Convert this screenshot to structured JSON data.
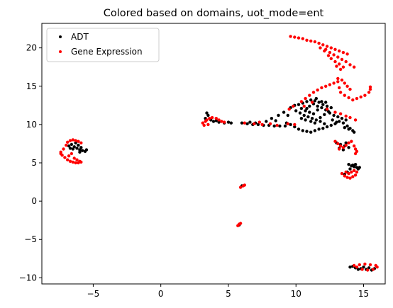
{
  "chart_data": {
    "type": "scatter",
    "title": "Colored based on domains, uot_mode=ent",
    "xlabel": "",
    "ylabel": "",
    "xlim": [
      -8.8,
      16.6
    ],
    "ylim": [
      -10.8,
      23.2
    ],
    "xticks": [
      -5,
      0,
      5,
      10,
      15
    ],
    "yticks": [
      -10,
      -5,
      0,
      5,
      10,
      15,
      20
    ],
    "xtick_labels": [
      "−5",
      "0",
      "5",
      "10",
      "15"
    ],
    "ytick_labels": [
      "−10",
      "−5",
      "0",
      "5",
      "10",
      "15",
      "20"
    ],
    "grid": false,
    "legend": {
      "position": "top-left"
    },
    "series": [
      {
        "name": "ADT",
        "color": "#000000",
        "points": [
          [
            -6.8,
            7.2
          ],
          [
            -6.6,
            7.4
          ],
          [
            -6.4,
            7.1
          ],
          [
            -6.2,
            6.9
          ],
          [
            -6.0,
            6.7
          ],
          [
            -5.8,
            6.6
          ],
          [
            -5.6,
            6.5
          ],
          [
            -5.5,
            6.7
          ],
          [
            -6.1,
            7.3
          ],
          [
            -6.5,
            6.8
          ],
          [
            -6.3,
            7.6
          ],
          [
            -5.9,
            7.0
          ],
          [
            -6.7,
            6.9
          ],
          [
            -6.0,
            6.4
          ],
          [
            3.4,
            11.5
          ],
          [
            3.5,
            11.2
          ],
          [
            3.7,
            10.6
          ],
          [
            3.9,
            10.4
          ],
          [
            4.3,
            10.3
          ],
          [
            4.7,
            10.2
          ],
          [
            5.0,
            10.3
          ],
          [
            5.2,
            10.2
          ],
          [
            3.3,
            10.8
          ],
          [
            4.1,
            10.5
          ],
          [
            6.0,
            10.2
          ],
          [
            6.4,
            10.1
          ],
          [
            6.8,
            10.0
          ],
          [
            7.2,
            10.0
          ],
          [
            7.6,
            9.9
          ],
          [
            8.0,
            9.9
          ],
          [
            8.4,
            9.8
          ],
          [
            8.8,
            9.8
          ],
          [
            9.2,
            9.8
          ],
          [
            7.8,
            10.4
          ],
          [
            8.2,
            10.8
          ],
          [
            8.7,
            11.2
          ],
          [
            9.1,
            11.6
          ],
          [
            9.4,
            11.2
          ],
          [
            8.5,
            10.5
          ],
          [
            7.0,
            10.2
          ],
          [
            6.6,
            10.3
          ],
          [
            9.3,
            10.2
          ],
          [
            9.6,
            10.0
          ],
          [
            9.9,
            9.7
          ],
          [
            10.2,
            9.4
          ],
          [
            10.5,
            9.2
          ],
          [
            10.8,
            9.1
          ],
          [
            11.1,
            9.0
          ],
          [
            11.4,
            9.2
          ],
          [
            11.7,
            9.4
          ],
          [
            12.0,
            9.5
          ],
          [
            12.3,
            9.7
          ],
          [
            12.6,
            9.9
          ],
          [
            12.9,
            10.1
          ],
          [
            13.2,
            10.4
          ],
          [
            13.5,
            10.2
          ],
          [
            13.8,
            9.8
          ],
          [
            14.0,
            9.5
          ],
          [
            14.2,
            9.2
          ],
          [
            14.3,
            9.0
          ],
          [
            13.9,
            9.4
          ],
          [
            13.6,
            9.6
          ],
          [
            9.6,
            12.2
          ],
          [
            9.9,
            12.5
          ],
          [
            10.2,
            12.6
          ],
          [
            10.5,
            12.8
          ],
          [
            10.8,
            13.0
          ],
          [
            11.1,
            13.2
          ],
          [
            11.4,
            13.1
          ],
          [
            11.7,
            12.9
          ],
          [
            12.0,
            12.6
          ],
          [
            12.3,
            12.4
          ],
          [
            12.6,
            12.2
          ],
          [
            10.0,
            11.8
          ],
          [
            10.3,
            11.5
          ],
          [
            10.6,
            11.2
          ],
          [
            10.9,
            11.0
          ],
          [
            11.2,
            10.8
          ],
          [
            11.5,
            10.6
          ],
          [
            11.8,
            10.9
          ],
          [
            12.1,
            11.3
          ],
          [
            12.4,
            11.7
          ],
          [
            10.4,
            12.1
          ],
          [
            10.7,
            11.8
          ],
          [
            11.0,
            11.6
          ],
          [
            11.3,
            11.4
          ],
          [
            11.6,
            11.9
          ],
          [
            11.9,
            12.2
          ],
          [
            12.2,
            11.9
          ],
          [
            12.5,
            11.5
          ],
          [
            12.8,
            11.2
          ],
          [
            13.1,
            11.0
          ],
          [
            13.4,
            10.8
          ],
          [
            13.7,
            10.6
          ],
          [
            11.0,
            12.4
          ],
          [
            11.3,
            12.7
          ],
          [
            10.8,
            12.1
          ],
          [
            11.6,
            12.4
          ],
          [
            11.8,
            10.4
          ],
          [
            12.1,
            10.1
          ],
          [
            11.4,
            10.2
          ],
          [
            11.1,
            10.4
          ],
          [
            10.7,
            10.6
          ],
          [
            10.4,
            10.8
          ],
          [
            12.7,
            10.6
          ],
          [
            13.0,
            10.3
          ],
          [
            11.5,
            13.4
          ],
          [
            11.9,
            13.0
          ],
          [
            12.2,
            12.9
          ],
          [
            13.0,
            7.6
          ],
          [
            13.3,
            7.4
          ],
          [
            13.6,
            7.2
          ],
          [
            13.9,
            7.0
          ],
          [
            13.2,
            6.9
          ],
          [
            13.5,
            6.7
          ],
          [
            13.7,
            7.6
          ],
          [
            13.9,
            4.8
          ],
          [
            14.1,
            4.6
          ],
          [
            14.3,
            4.5
          ],
          [
            14.5,
            4.4
          ],
          [
            14.7,
            4.4
          ],
          [
            14.0,
            4.2
          ],
          [
            14.2,
            4.7
          ],
          [
            13.8,
            3.8
          ],
          [
            13.6,
            3.5
          ],
          [
            14.4,
            4.8
          ],
          [
            14.6,
            4.2
          ],
          [
            6.0,
            2.0
          ],
          [
            5.8,
            -3.1
          ],
          [
            14.0,
            -8.6
          ],
          [
            14.4,
            -8.7
          ],
          [
            14.8,
            -8.8
          ],
          [
            15.2,
            -8.9
          ],
          [
            15.6,
            -9.0
          ],
          [
            14.2,
            -8.5
          ],
          [
            15.0,
            -8.6
          ],
          [
            15.4,
            -8.7
          ],
          [
            15.8,
            -8.8
          ],
          [
            14.6,
            -8.9
          ]
        ]
      },
      {
        "name": "Gene Expression",
        "color": "#ff0000",
        "points": [
          [
            -7.4,
            6.4
          ],
          [
            -7.3,
            6.0
          ],
          [
            -7.1,
            5.7
          ],
          [
            -6.9,
            5.4
          ],
          [
            -6.7,
            5.2
          ],
          [
            -6.5,
            5.1
          ],
          [
            -6.3,
            5.0
          ],
          [
            -6.1,
            5.0
          ],
          [
            -6.0,
            5.2
          ],
          [
            -7.2,
            6.8
          ],
          [
            -7.0,
            7.3
          ],
          [
            -6.9,
            7.7
          ],
          [
            -6.7,
            7.9
          ],
          [
            -6.5,
            8.0
          ],
          [
            -6.3,
            7.9
          ],
          [
            -6.1,
            7.8
          ],
          [
            -5.9,
            7.6
          ],
          [
            -6.6,
            6.2
          ],
          [
            -6.8,
            5.9
          ],
          [
            -7.4,
            6.2
          ],
          [
            -6.4,
            5.6
          ],
          [
            -6.2,
            5.4
          ],
          [
            -5.9,
            5.1
          ],
          [
            3.1,
            10.2
          ],
          [
            3.2,
            9.9
          ],
          [
            3.4,
            10.6
          ],
          [
            3.6,
            10.8
          ],
          [
            3.8,
            10.9
          ],
          [
            4.1,
            10.8
          ],
          [
            4.3,
            10.6
          ],
          [
            4.5,
            10.4
          ],
          [
            4.7,
            10.3
          ],
          [
            3.3,
            10.4
          ],
          [
            3.5,
            10.0
          ],
          [
            6.2,
            10.2
          ],
          [
            6.9,
            10.1
          ],
          [
            7.3,
            10.3
          ],
          [
            8.1,
            10.1
          ],
          [
            8.6,
            9.9
          ],
          [
            9.4,
            10.1
          ],
          [
            9.9,
            10.0
          ],
          [
            7.5,
            10.0
          ],
          [
            9.6,
            21.5
          ],
          [
            9.9,
            21.4
          ],
          [
            10.2,
            21.3
          ],
          [
            10.5,
            21.2
          ],
          [
            10.8,
            21.0
          ],
          [
            11.1,
            20.9
          ],
          [
            11.4,
            20.8
          ],
          [
            11.7,
            20.6
          ],
          [
            12.0,
            20.4
          ],
          [
            12.3,
            20.2
          ],
          [
            12.6,
            20.0
          ],
          [
            12.9,
            19.8
          ],
          [
            13.2,
            19.6
          ],
          [
            13.5,
            19.4
          ],
          [
            13.8,
            19.2
          ],
          [
            12.2,
            19.8
          ],
          [
            12.5,
            19.4
          ],
          [
            12.8,
            19.1
          ],
          [
            13.1,
            18.8
          ],
          [
            13.4,
            18.5
          ],
          [
            13.7,
            18.2
          ],
          [
            14.0,
            17.8
          ],
          [
            14.3,
            17.5
          ],
          [
            12.6,
            18.6
          ],
          [
            12.9,
            18.2
          ],
          [
            13.2,
            17.9
          ],
          [
            13.5,
            17.5
          ],
          [
            12.4,
            19.0
          ],
          [
            13.0,
            17.6
          ],
          [
            13.3,
            17.2
          ],
          [
            11.8,
            20.0
          ],
          [
            12.1,
            19.6
          ],
          [
            10.4,
            13.0
          ],
          [
            10.7,
            13.4
          ],
          [
            11.0,
            13.8
          ],
          [
            11.3,
            14.2
          ],
          [
            11.6,
            14.5
          ],
          [
            11.9,
            14.8
          ],
          [
            12.2,
            15.0
          ],
          [
            12.5,
            15.2
          ],
          [
            12.8,
            15.4
          ],
          [
            13.1,
            15.6
          ],
          [
            13.4,
            15.8
          ],
          [
            13.6,
            15.4
          ],
          [
            13.8,
            15.0
          ],
          [
            14.0,
            14.6
          ],
          [
            13.3,
            14.2
          ],
          [
            13.6,
            13.8
          ],
          [
            13.9,
            13.5
          ],
          [
            14.2,
            13.2
          ],
          [
            14.5,
            13.4
          ],
          [
            14.8,
            13.6
          ],
          [
            15.1,
            13.8
          ],
          [
            15.4,
            14.2
          ],
          [
            15.5,
            14.6
          ],
          [
            15.5,
            14.9
          ],
          [
            13.1,
            16.0
          ],
          [
            13.2,
            14.8
          ],
          [
            9.5,
            12.0
          ],
          [
            9.8,
            12.4
          ],
          [
            10.6,
            12.4
          ],
          [
            11.2,
            12.9
          ],
          [
            12.3,
            12.0
          ],
          [
            12.9,
            11.6
          ],
          [
            13.3,
            11.4
          ],
          [
            13.7,
            11.1
          ],
          [
            14.0,
            10.9
          ],
          [
            14.4,
            10.6
          ],
          [
            12.9,
            7.8
          ],
          [
            13.1,
            7.5
          ],
          [
            13.3,
            7.2
          ],
          [
            13.5,
            7.0
          ],
          [
            13.7,
            7.3
          ],
          [
            13.9,
            7.6
          ],
          [
            14.1,
            7.8
          ],
          [
            14.3,
            7.2
          ],
          [
            14.4,
            6.8
          ],
          [
            14.5,
            6.5
          ],
          [
            14.4,
            6.2
          ],
          [
            13.2,
            6.8
          ],
          [
            13.4,
            3.6
          ],
          [
            13.6,
            3.3
          ],
          [
            13.8,
            3.1
          ],
          [
            14.0,
            3.0
          ],
          [
            14.2,
            3.2
          ],
          [
            14.4,
            3.4
          ],
          [
            13.7,
            3.8
          ],
          [
            13.9,
            3.6
          ],
          [
            14.1,
            3.8
          ],
          [
            14.3,
            4.0
          ],
          [
            14.5,
            3.8
          ],
          [
            5.9,
            1.8
          ],
          [
            6.1,
            2.0
          ],
          [
            6.2,
            2.1
          ],
          [
            5.7,
            -3.2
          ],
          [
            5.8,
            -3.0
          ],
          [
            5.9,
            -2.9
          ],
          [
            14.3,
            -8.4
          ],
          [
            14.7,
            -8.3
          ],
          [
            15.1,
            -8.2
          ],
          [
            15.5,
            -8.3
          ],
          [
            15.9,
            -8.4
          ],
          [
            14.9,
            -8.9
          ],
          [
            15.3,
            -9.0
          ],
          [
            15.7,
            -8.9
          ],
          [
            16.0,
            -8.6
          ],
          [
            14.5,
            -8.6
          ]
        ]
      }
    ]
  }
}
